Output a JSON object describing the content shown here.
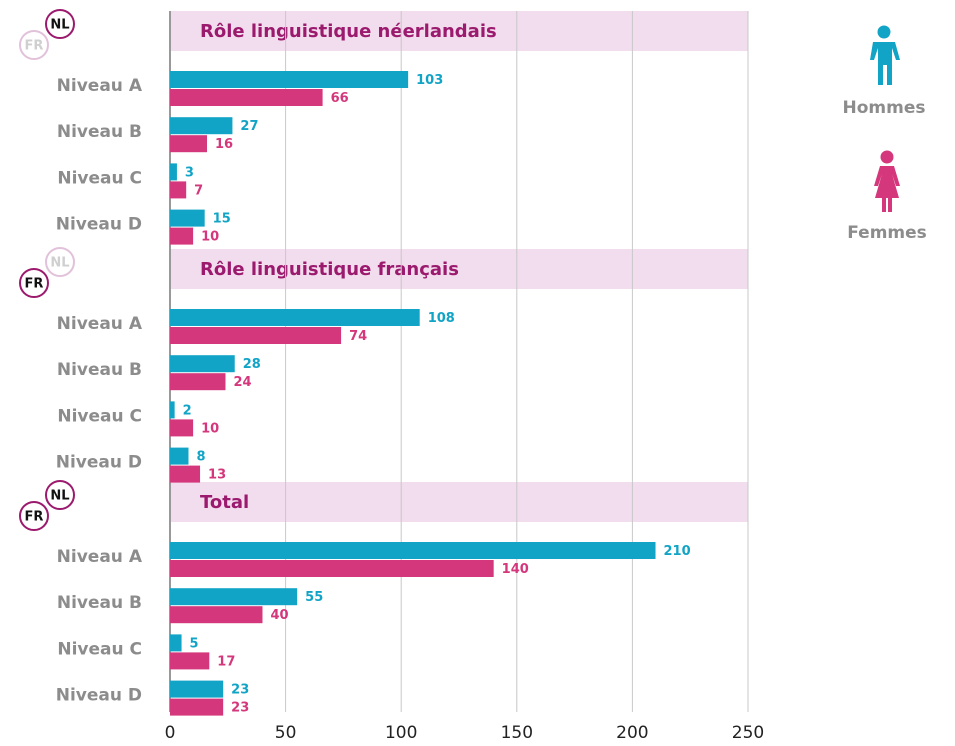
{
  "chart_data": {
    "type": "bar",
    "orientation": "horizontal",
    "badges": [
      "NL",
      "FR"
    ],
    "panels": [
      {
        "title": "Rôle linguistique néerlandais"
      },
      {
        "title": "Rôle linguistique français"
      },
      {
        "title": "Total"
      }
    ],
    "categories": [
      "Niveau A",
      "Niveau B",
      "Niveau C",
      "Niveau D"
    ],
    "series": [
      {
        "name": "Hommes",
        "color": "#12a4c6",
        "values": [
          [
            103,
            27,
            3,
            15
          ],
          [
            108,
            28,
            2,
            8
          ],
          [
            210,
            55,
            5,
            23
          ]
        ]
      },
      {
        "name": "Femmes",
        "color": "#d4377b",
        "values": [
          [
            66,
            16,
            7,
            10
          ],
          [
            74,
            24,
            10,
            13
          ],
          [
            140,
            40,
            17,
            23
          ]
        ]
      }
    ],
    "xlim": [
      0,
      250
    ],
    "xticks": [
      0,
      50,
      100,
      150,
      200,
      250
    ],
    "grid": true
  }
}
